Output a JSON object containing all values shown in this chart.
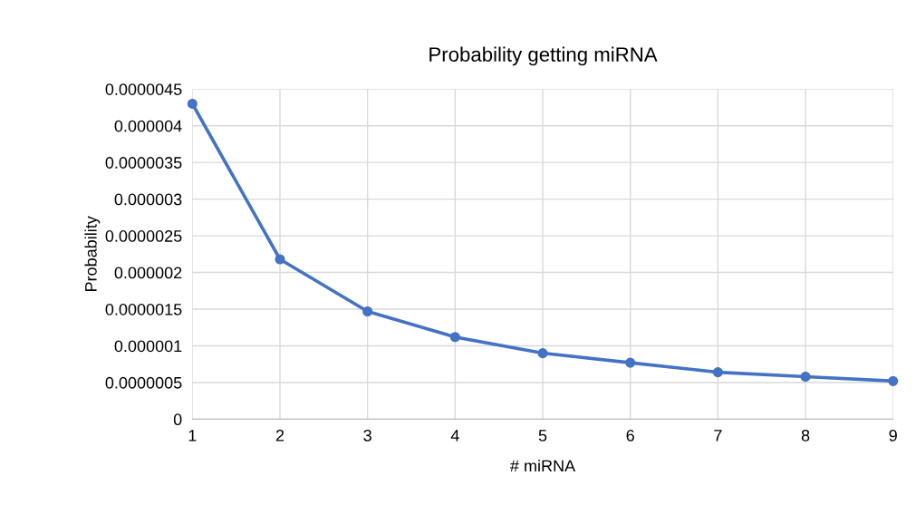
{
  "chart_data": {
    "type": "line",
    "title": "Probability getting miRNA",
    "xlabel": "# miRNA",
    "ylabel": "Probability",
    "x": [
      1,
      2,
      3,
      4,
      5,
      6,
      7,
      8,
      9
    ],
    "series": [
      {
        "color": "#4472c4",
        "values": [
          4.3e-06,
          2.18e-06,
          1.47e-06,
          1.12e-06,
          9e-07,
          7.7e-07,
          6.4e-07,
          5.8e-07,
          5.2e-07
        ]
      }
    ],
    "xlim": [
      1,
      9
    ],
    "xticks": [
      1,
      2,
      3,
      4,
      5,
      6,
      7,
      8,
      9
    ],
    "ylim": [
      0,
      4.5e-06
    ],
    "yticks": [
      0,
      {
        "value": 5e-07,
        "label": "0.0000005"
      },
      {
        "value": 1e-06,
        "label": "0.000001"
      },
      {
        "value": 1.5e-06,
        "label": "0.0000015"
      },
      {
        "value": 2e-06,
        "label": "0.000002"
      },
      {
        "value": 2.5e-06,
        "label": "0.0000025"
      },
      {
        "value": 3e-06,
        "label": "0.000003"
      },
      {
        "value": 3.5e-06,
        "label": "0.0000035"
      },
      {
        "value": 4e-06,
        "label": "0.000004"
      },
      {
        "value": 4.5e-06,
        "label": "0.0000045"
      }
    ],
    "grid": true,
    "marker": "circle",
    "line_style": "solid",
    "legend": false
  }
}
